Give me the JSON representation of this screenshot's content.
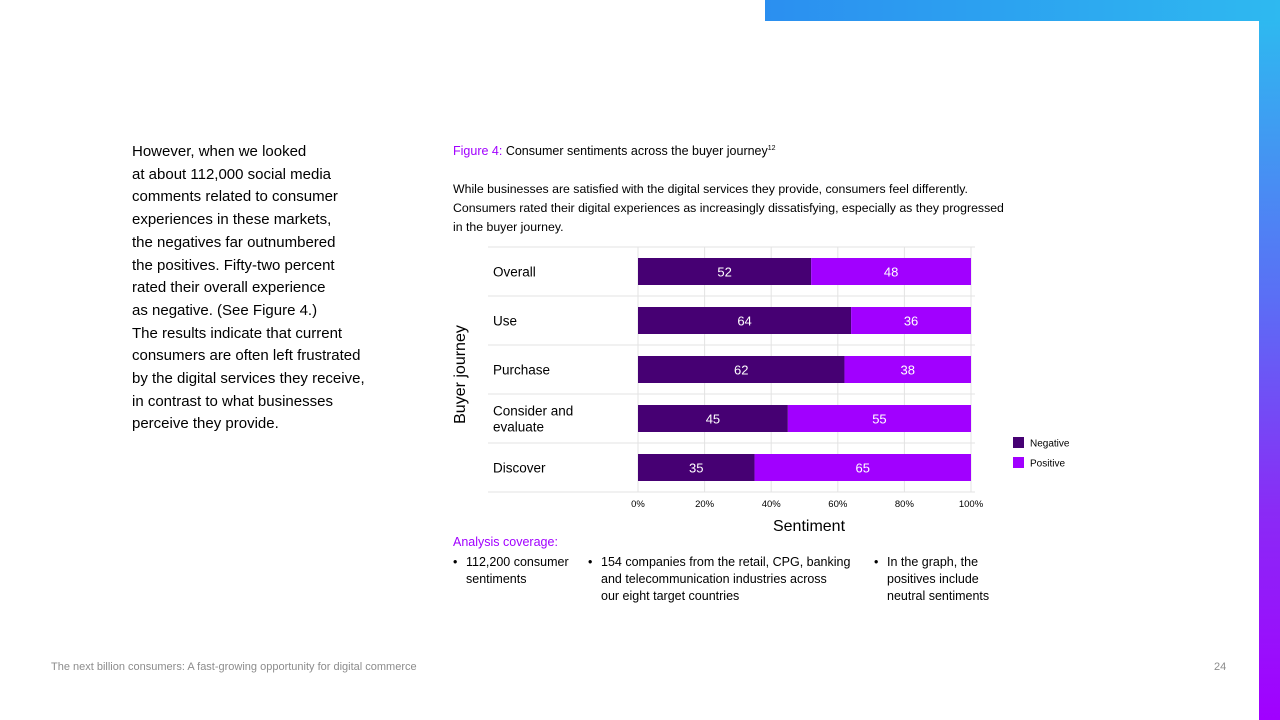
{
  "body_text": [
    "However, when we looked",
    "at about 112,000 social media",
    "comments related to consumer",
    "experiences in these markets,",
    "the negatives far outnumbered",
    "the positives. Fifty-two percent",
    "rated their overall experience",
    "as negative. (See Figure 4.)",
    "The results indicate that current",
    "consumers are often left frustrated",
    "by the digital services they receive,",
    "in contrast to what businesses",
    "perceive they provide."
  ],
  "figure": {
    "label": "Figure 4:",
    "title": "Consumer sentiments across the buyer journey",
    "footnote": "12",
    "description": [
      "While businesses are satisfied with the digital services they provide, consumers feel differently.",
      "Consumers rated their digital experiences as increasingly dissatisfying, especially as they progressed",
      "in the buyer journey."
    ]
  },
  "chart_data": {
    "type": "bar",
    "orientation": "horizontal",
    "stacked": true,
    "categories": [
      [
        "Overall"
      ],
      [
        "Use"
      ],
      [
        "Purchase"
      ],
      [
        "Consider and",
        "evaluate"
      ],
      [
        "Discover"
      ]
    ],
    "series": [
      {
        "name": "Negative",
        "color": "#460073",
        "values": [
          52,
          64,
          62,
          45,
          35
        ]
      },
      {
        "name": "Positive",
        "color": "#a100ff",
        "values": [
          48,
          36,
          38,
          55,
          65
        ]
      }
    ],
    "xlabel": "Sentiment",
    "ylabel": "Buyer journey",
    "xlim": [
      0,
      100
    ],
    "x_ticks": [
      "0%",
      "20%",
      "40%",
      "60%",
      "80%",
      "100%"
    ],
    "grid": true,
    "legend": "right"
  },
  "coverage": {
    "title": "Analysis coverage:",
    "items": [
      [
        "112,200 consumer",
        "sentiments"
      ],
      [
        "154 companies from the retail, CPG, banking",
        "and telecommunication industries across",
        "our eight target countries"
      ],
      [
        "In the graph, the",
        "positives include",
        "neutral sentiments"
      ]
    ]
  },
  "footer": {
    "text": "The next billion consumers: A fast-growing opportunity for digital commerce",
    "page": "24"
  }
}
